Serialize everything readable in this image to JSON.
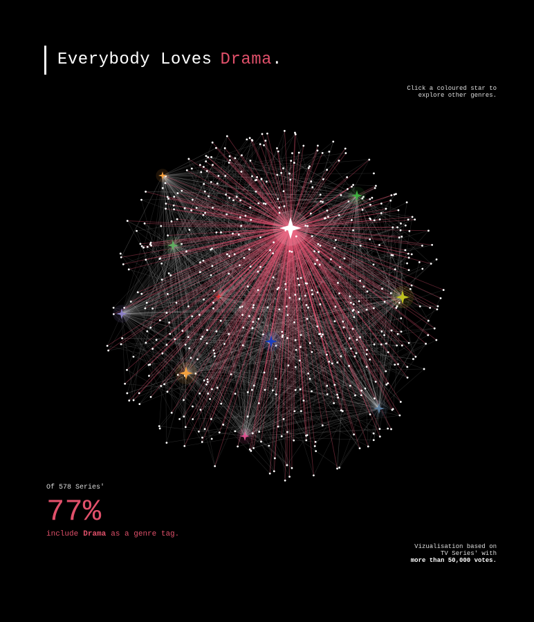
{
  "header": {
    "title_lead": "Everybody Loves",
    "title_genre": "Drama",
    "title_end": ".",
    "hint": [
      "Click a coloured star to",
      "explore other genres."
    ]
  },
  "stats": {
    "intro": "Of 578 Series'",
    "share": "77%",
    "caption": [
      "include",
      "Drama",
      "as a genre tag."
    ]
  },
  "footer": [
    "Vizualisation based on",
    "TV Series' with",
    "more than 50,000 votes."
  ]
}
